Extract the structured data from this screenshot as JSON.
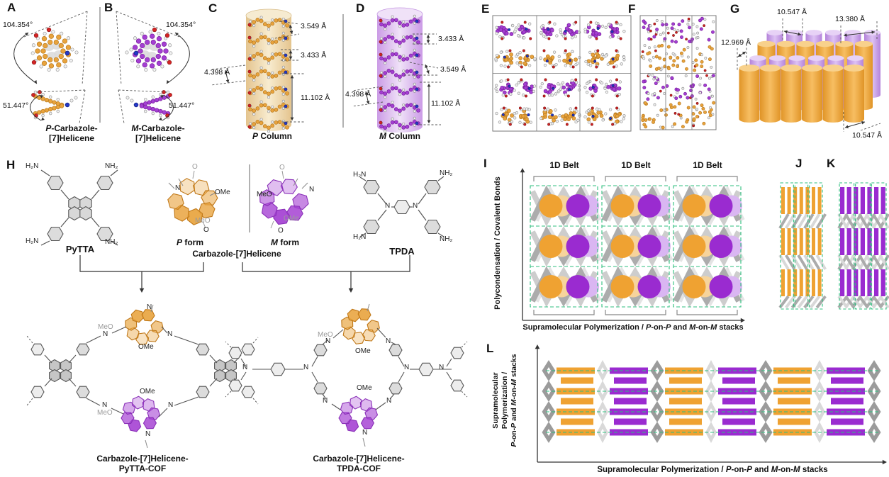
{
  "figure": {
    "colors": {
      "orange": "#EFA232",
      "purple": "#9A2BD0",
      "orange_mol": "#E8A33D",
      "purple_mol": "#A43FD2",
      "orange_light": "#F6D49C",
      "purple_light": "#DAB6F2",
      "tan_cyl": "#F0DEB4",
      "purple_cyl": "#DDB9F0",
      "red_atom": "#D42424",
      "blue_atom": "#2438C8",
      "gray_mol": "#C9C9C9",
      "strut_dark": "#ABABAB",
      "strut_light": "#D8D8D8",
      "green_dash": "#2FBF7F",
      "box_stroke": "#777777"
    },
    "panels": {
      "A": {
        "label": "A",
        "angle_top": "104.354°",
        "angle_bottom": "51.447°",
        "caption_line1": [
          {
            "t": "P",
            "i": true
          },
          {
            "t": "-Carbazole-"
          }
        ],
        "caption_line2": "[7]Helicene"
      },
      "B": {
        "label": "B",
        "angle_top": "104.354°",
        "angle_bottom": "51.447°",
        "caption_line1": [
          {
            "t": "M",
            "i": true
          },
          {
            "t": "-Carbazole-"
          }
        ],
        "caption_line2": "[7]Helicene"
      },
      "C": {
        "label": "C",
        "d1": "3.549 Å",
        "d2": "3.433 Å",
        "d3": "4.398 Å",
        "d4": "11.102 Å",
        "caption": [
          {
            "t": "P",
            "i": true
          },
          {
            "t": " Column"
          }
        ]
      },
      "D": {
        "label": "D",
        "d1": "3.433 Å",
        "d2": "3.549 Å",
        "d3": "4.398 Å",
        "d4": "11.102 Å",
        "caption": [
          {
            "t": "M",
            "i": true
          },
          {
            "t": " Column"
          }
        ]
      },
      "E": {
        "label": "E"
      },
      "F": {
        "label": "F"
      },
      "G": {
        "label": "G",
        "d_top": "10.547 Å",
        "d_top_right": "13.380 Å",
        "d_left": "12.969 Å",
        "d_bottom": "10.547 Å"
      },
      "H": {
        "label": "H",
        "pytta": "PyTTA",
        "tpda": "TPDA",
        "p_form": [
          {
            "t": "P",
            "i": true
          },
          {
            "t": " form"
          }
        ],
        "m_form": [
          {
            "t": "M",
            "i": true
          },
          {
            "t": " form"
          }
        ],
        "helicene_caption": "Carbazole-[7]Helicene",
        "amine_left": "H₂N",
        "amine_right": "NH₂",
        "labels": {
          "ome": "OMe",
          "meo": "MeO",
          "n": "N",
          "o": "O"
        },
        "cof1_line1": "Carbazole-[7]Helicene-",
        "cof1_line2": "PyTTA-COF",
        "cof2_line1": "Carbazole-[7]Helicene-",
        "cof2_line2": "TPDA-COF"
      },
      "I": {
        "label": "I",
        "belts": [
          "1D Belt",
          "1D Belt",
          "1D Belt"
        ],
        "y_axis": "Polycondensation / Covalent Bonds",
        "x_axis": [
          {
            "t": "Supramolecular Polymerization / "
          },
          {
            "t": "P",
            "i": true
          },
          {
            "t": "-on-"
          },
          {
            "t": "P",
            "i": true
          },
          {
            "t": " and "
          },
          {
            "t": "M",
            "i": true
          },
          {
            "t": "-on-"
          },
          {
            "t": "M",
            "i": true
          },
          {
            "t": " stacks"
          }
        ]
      },
      "J": {
        "label": "J"
      },
      "K": {
        "label": "K"
      },
      "L": {
        "label": "L",
        "y_axis_line1": "Supramolecular",
        "y_axis_line2": "Polymerization /",
        "y_axis_line3": [
          {
            "t": "P",
            "i": true
          },
          {
            "t": "-on-"
          },
          {
            "t": "P",
            "i": true
          },
          {
            "t": " and "
          },
          {
            "t": "M",
            "i": true
          },
          {
            "t": "-on-"
          },
          {
            "t": "M",
            "i": true
          },
          {
            "t": " stacks"
          }
        ],
        "x_axis": [
          {
            "t": "Supramolecular Polymerization / "
          },
          {
            "t": "P",
            "i": true
          },
          {
            "t": "-on-"
          },
          {
            "t": "P",
            "i": true
          },
          {
            "t": " and "
          },
          {
            "t": "M",
            "i": true
          },
          {
            "t": "-on-"
          },
          {
            "t": "M",
            "i": true
          },
          {
            "t": " stacks"
          }
        ]
      }
    }
  }
}
